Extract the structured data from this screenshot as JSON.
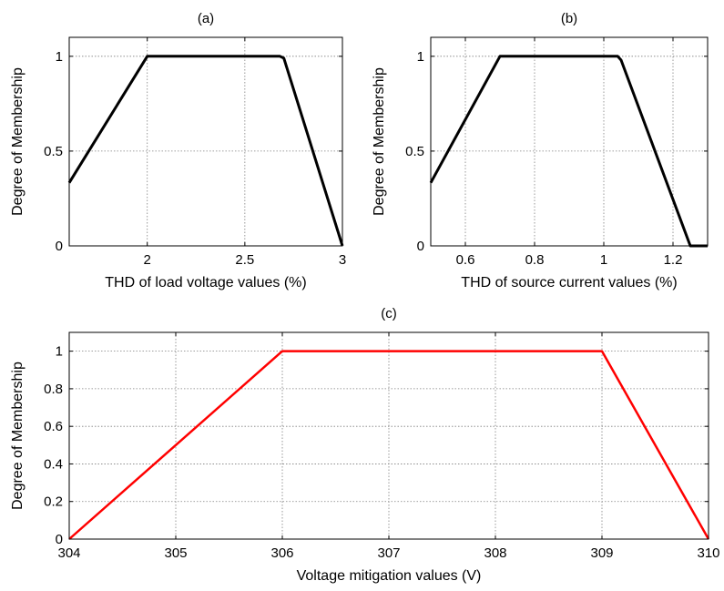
{
  "chart_data": [
    {
      "type": "line",
      "title": "(a)",
      "xlabel": "THD of load voltage values (%)",
      "ylabel": "Degree of Membership",
      "xlim": [
        1.6,
        3.0
      ],
      "ylim": [
        0,
        1.1
      ],
      "xticks": [
        2,
        2.5,
        3
      ],
      "xtick_labels": [
        "2",
        "2.5",
        "3"
      ],
      "yticks": [
        0,
        0.5,
        1
      ],
      "ytick_labels": [
        "0",
        "0.5",
        "1"
      ],
      "grid": true,
      "series": [
        {
          "color": "#000000",
          "x": [
            1.6,
            2.0,
            2.68,
            2.7,
            3.0
          ],
          "y": [
            0.333,
            1.0,
            1.0,
            0.99,
            0.0
          ]
        }
      ]
    },
    {
      "type": "line",
      "title": "(b)",
      "xlabel": "THD of source current values (%)",
      "ylabel": "Degree of Membership",
      "xlim": [
        0.5,
        1.3
      ],
      "ylim": [
        0,
        1.1
      ],
      "xticks": [
        0.6,
        0.8,
        1.0,
        1.2
      ],
      "xtick_labels": [
        "0.6",
        "0.8",
        "1",
        "1.2"
      ],
      "yticks": [
        0,
        0.5,
        1
      ],
      "ytick_labels": [
        "0",
        "0.5",
        "1"
      ],
      "grid": true,
      "series": [
        {
          "color": "#000000",
          "x": [
            0.5,
            0.7,
            1.04,
            1.05,
            1.25,
            1.3
          ],
          "y": [
            0.333,
            1.0,
            1.0,
            0.98,
            0.0,
            0.0
          ]
        }
      ]
    },
    {
      "type": "line",
      "title": "(c)",
      "xlabel": "Voltage mitigation values (V)",
      "ylabel": "Degree of Membership",
      "xlim": [
        304,
        310
      ],
      "ylim": [
        0,
        1.1
      ],
      "xticks": [
        304,
        305,
        306,
        307,
        308,
        309,
        310
      ],
      "xtick_labels": [
        "304",
        "305",
        "306",
        "307",
        "308",
        "309",
        "310"
      ],
      "yticks": [
        0,
        0.2,
        0.4,
        0.6,
        0.8,
        1
      ],
      "ytick_labels": [
        "0",
        "0.2",
        "0.4",
        "0.6",
        "0.8",
        "1"
      ],
      "grid": true,
      "series": [
        {
          "color": "#ff0000",
          "x": [
            304,
            306,
            309,
            310
          ],
          "y": [
            0,
            1,
            1,
            0
          ]
        }
      ]
    }
  ]
}
